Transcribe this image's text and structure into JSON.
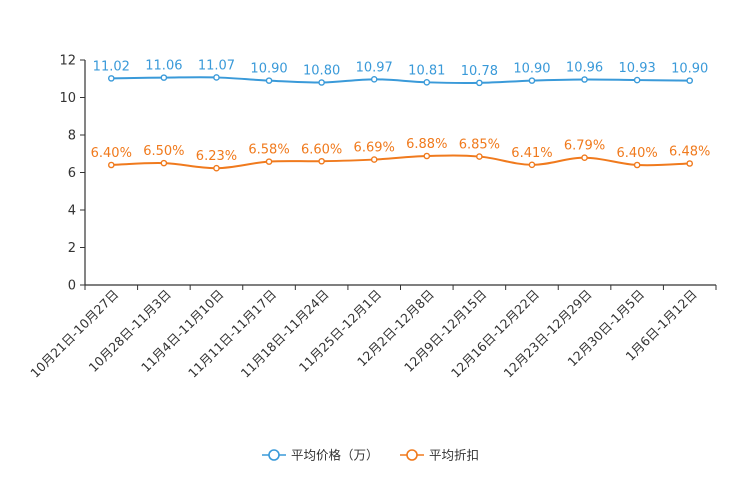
{
  "chart_data": {
    "type": "line",
    "title": "",
    "xlabel": "",
    "ylabel": "",
    "ylim": [
      0,
      12
    ],
    "yticks": [
      0,
      2,
      4,
      6,
      8,
      10,
      12
    ],
    "grid": false,
    "legend_position": "bottom-center",
    "categories": [
      "10月21日-10月27日",
      "10月28日-11月3日",
      "11月4日-11月10日",
      "11月11日-11月17日",
      "11月18日-11月24日",
      "11月25日-12月1日",
      "12月2日-12月8日",
      "12月9日-12月15日",
      "12月16日-12月22日",
      "12月23日-12月29日",
      "12月30日-1月5日",
      "1月6日-1月12日"
    ],
    "series": [
      {
        "name": "平均价格（万）",
        "color": "#3a9ad9",
        "values": [
          11.02,
          11.06,
          11.07,
          10.9,
          10.8,
          10.97,
          10.81,
          10.78,
          10.9,
          10.96,
          10.93,
          10.9
        ],
        "labels": [
          "11.02",
          "11.06",
          "11.07",
          "10.90",
          "10.80",
          "10.97",
          "10.81",
          "10.78",
          "10.90",
          "10.96",
          "10.93",
          "10.90"
        ]
      },
      {
        "name": "平均折扣",
        "color": "#f07a1d",
        "values": [
          6.4,
          6.5,
          6.23,
          6.58,
          6.6,
          6.69,
          6.88,
          6.85,
          6.41,
          6.79,
          6.4,
          6.48
        ],
        "labels": [
          "6.40%",
          "6.50%",
          "6.23%",
          "6.58%",
          "6.60%",
          "6.69%",
          "6.88%",
          "6.85%",
          "6.41%",
          "6.79%",
          "6.40%",
          "6.48%"
        ]
      }
    ]
  }
}
